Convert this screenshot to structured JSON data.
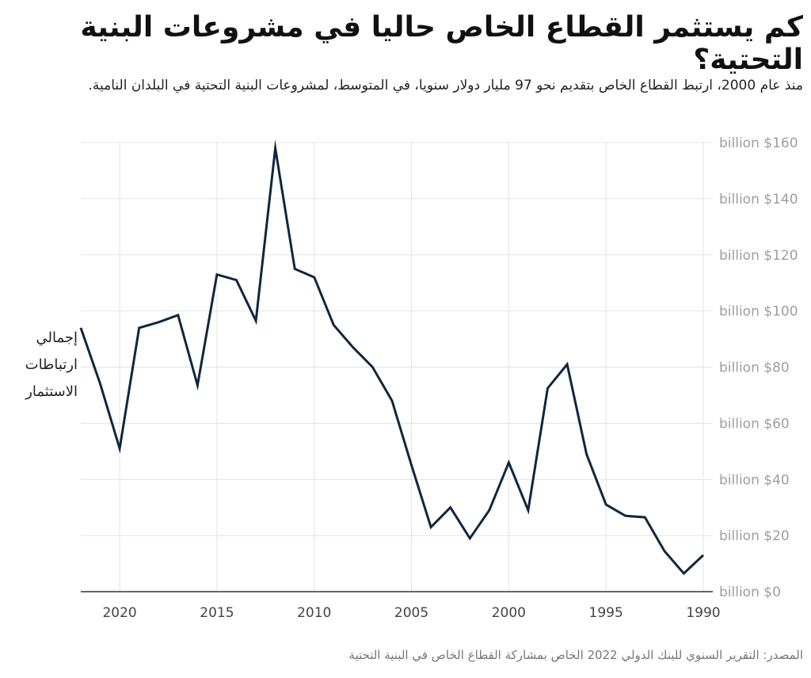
{
  "title": "كم يستثمر القطاع الخاص حاليا في مشروعات البنية التحتية؟",
  "subtitle": "منذ عام 2000، ارتبط القطاع الخاص بتقديم نحو 97 مليار دولار سنويا، في المتوسط، لمشروعات البنية التحتية في البلدان النامية.",
  "y_axis_label_lines": [
    "إجمالي",
    "ارتباطات",
    "الاستثمار"
  ],
  "source": "المصدر: التقرير السنوي للبنك الدولي 2022 الخاص بمشاركة القطاع الخاص في البنية التحتية",
  "line_color": "#0f2740",
  "chart_data": {
    "type": "line",
    "title": "كم يستثمر القطاع الخاص حاليا في مشروعات البنية التحتية؟",
    "xlabel": "",
    "ylabel": "إجمالي ارتباطات الاستثمار",
    "x_direction": "reversed",
    "xlim": [
      1990,
      2022
    ],
    "ylim": [
      0,
      160
    ],
    "y_ticks": [
      0,
      20,
      40,
      60,
      80,
      100,
      120,
      140,
      160
    ],
    "y_tick_labels": [
      "billion $0",
      "billion $20",
      "billion $40",
      "billion $60",
      "billion $80",
      "billion $100",
      "billion $120",
      "billion $140",
      "billion $160"
    ],
    "x_ticks": [
      1990,
      1995,
      2000,
      2005,
      2010,
      2015,
      2020
    ],
    "x_tick_labels": [
      "1990",
      "1995",
      "2000",
      "2005",
      "2010",
      "2015",
      "2020"
    ],
    "grid": true,
    "series": [
      {
        "name": "إجمالي ارتباطات الاستثمار",
        "x": [
          1990,
          1991,
          1992,
          1993,
          1994,
          1995,
          1996,
          1997,
          1998,
          1999,
          2000,
          2001,
          2002,
          2003,
          2004,
          2005,
          2006,
          2007,
          2008,
          2009,
          2010,
          2011,
          2012,
          2013,
          2014,
          2015,
          2016,
          2017,
          2018,
          2019,
          2020,
          2021,
          2022
        ],
        "values": [
          13,
          6.5,
          14.5,
          26.5,
          27,
          31,
          49,
          81,
          72.5,
          29,
          46,
          29,
          19,
          30,
          23,
          45,
          68,
          80,
          87,
          95,
          112,
          115,
          158,
          96.5,
          111,
          113,
          73.5,
          98.5,
          96,
          94,
          51,
          74,
          94
        ]
      }
    ]
  }
}
